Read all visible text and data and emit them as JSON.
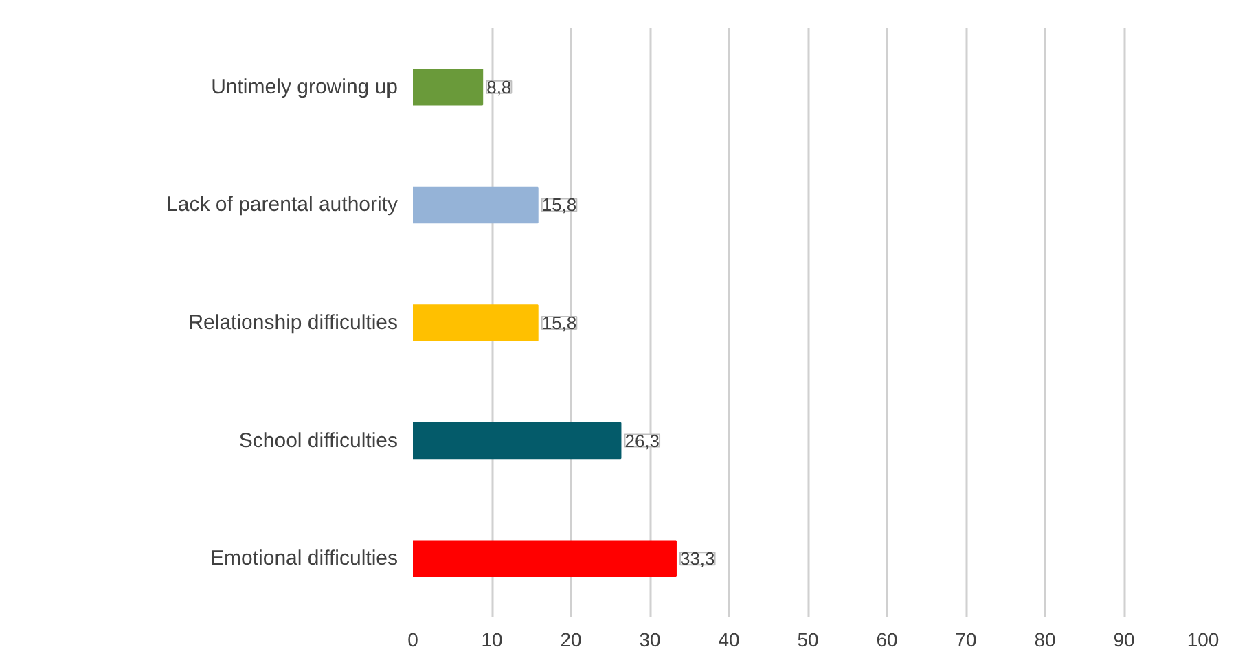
{
  "chart_data": {
    "type": "bar",
    "orientation": "horizontal",
    "categories": [
      "Untimely growing up",
      "Lack of parental authority",
      "Relationship difficulties",
      "School difficulties",
      "Emotional difficulties"
    ],
    "values": [
      8.8,
      15.8,
      15.8,
      26.3,
      33.3
    ],
    "colors": [
      "#6a9a3a",
      "#95b3d7",
      "#ffc000",
      "#045b6a",
      "#ff0000"
    ],
    "value_labels": [
      "8,8",
      "15,8",
      "15,8",
      "26,3",
      "33,3"
    ],
    "xlim": [
      0,
      100
    ],
    "xticks": [
      0,
      10,
      20,
      30,
      40,
      50,
      60,
      70,
      80,
      90,
      100
    ],
    "grid": "x"
  }
}
